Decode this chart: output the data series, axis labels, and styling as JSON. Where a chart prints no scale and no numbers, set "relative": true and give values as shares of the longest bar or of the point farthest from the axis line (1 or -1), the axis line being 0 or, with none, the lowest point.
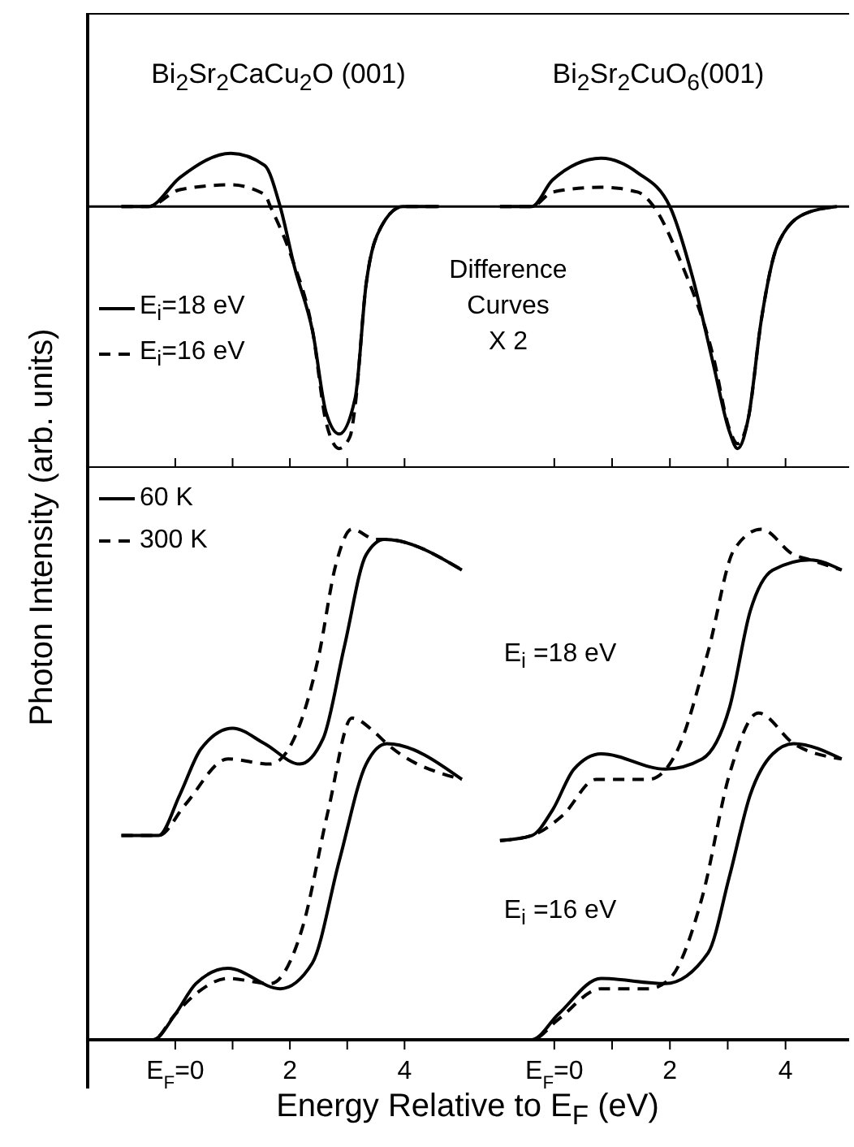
{
  "chart_data": [
    {
      "type": "line",
      "title": "Bi$_{2}$Sr$_{2}$CaCu$_{2}$O (001)",
      "relative": true,
      "xlim": [
        -1.5,
        5.1
      ],
      "xticks": [
        {
          "value": 0,
          "label": null
        },
        {
          "value": 1,
          "label": null
        },
        {
          "value": 2,
          "label": null
        },
        {
          "value": 3,
          "label": null
        },
        {
          "value": 4,
          "label": null
        }
      ],
      "tick_labels": false,
      "ref_lines": [
        {
          "axis": "y",
          "value": 0
        }
      ],
      "legend": "left",
      "annotations": [
        "Difference\nCurves\nX 2"
      ],
      "series": [
        {
          "name": "E$_{i}$=18 eV",
          "color": "#000000",
          "line_style": "solid",
          "x": [
            -0.94,
            -0.47,
            0.08,
            0.97,
            1.56,
            1.83,
            2.08,
            2.4,
            2.63,
            2.86,
            3.14,
            3.33,
            3.6,
            3.97,
            4.6
          ],
          "values": [
            0,
            0,
            0.12,
            0.22,
            0.17,
            0,
            -0.25,
            -0.52,
            -0.85,
            -0.94,
            -0.79,
            -0.32,
            -0.08,
            0,
            0
          ]
        },
        {
          "name": "E$_{i}$=16 eV",
          "color": "#000000",
          "line_style": "dashed",
          "x": [
            -0.94,
            -0.47,
            0.08,
            0.97,
            1.56,
            1.66,
            2.03,
            2.4,
            2.63,
            2.86,
            3.05,
            3.14,
            3.33,
            3.6,
            3.97,
            4.6
          ],
          "values": [
            0,
            0,
            0.07,
            0.09,
            0.05,
            0,
            -0.21,
            -0.52,
            -0.89,
            -1,
            -0.95,
            -0.82,
            -0.32,
            -0.08,
            0,
            0
          ]
        }
      ]
    },
    {
      "type": "line",
      "title": "Bi$_{2}$Sr$_{2}$CuO$_{6}$(001)",
      "relative": true,
      "xlim": [
        -1.5,
        5.1
      ],
      "xticks": [
        {
          "value": 0,
          "label": null
        },
        {
          "value": 1,
          "label": null
        },
        {
          "value": 2,
          "label": null
        },
        {
          "value": 3,
          "label": null
        },
        {
          "value": 4,
          "label": null
        }
      ],
      "tick_labels": false,
      "ref_lines": [
        {
          "axis": "y",
          "value": 0
        }
      ],
      "series": [
        {
          "color": "#000000",
          "line_style": "solid",
          "x": [
            -0.94,
            -0.39,
            -0.03,
            0.81,
            1.44,
            2.0,
            2.39,
            2.75,
            3.03,
            3.17,
            3.36,
            3.58,
            3.86,
            4.33,
            4.89
          ],
          "values": [
            0,
            0,
            0.11,
            0.2,
            0.14,
            0,
            -0.29,
            -0.65,
            -0.93,
            -1,
            -0.87,
            -0.47,
            -0.16,
            -0.03,
            0
          ]
        },
        {
          "color": "#000000",
          "line_style": "dashed",
          "x": [
            -0.94,
            -0.39,
            -0.03,
            0.81,
            1.44,
            1.72,
            2.19,
            2.75,
            3.03,
            3.17,
            3.36,
            3.58,
            3.86,
            4.33,
            4.89
          ],
          "values": [
            0,
            0,
            0.06,
            0.08,
            0.06,
            0,
            -0.23,
            -0.62,
            -0.92,
            -0.98,
            -0.87,
            -0.47,
            -0.16,
            -0.03,
            0
          ]
        }
      ]
    },
    {
      "type": "line",
      "xlabel": "Energy Relative to E$_{F}$ (eV)",
      "ylabel": "Photon Intensity (arb. units)",
      "relative": true,
      "xlim": [
        -1.5,
        5.1
      ],
      "xticks": [
        {
          "value": 0,
          "label": "E$_{F}$=0"
        },
        {
          "value": 1,
          "label": null
        },
        {
          "value": 2,
          "label": "2"
        },
        {
          "value": 3,
          "label": null
        },
        {
          "value": 4,
          "label": "4"
        }
      ],
      "tick_labels": "x",
      "legend": "top left",
      "series": [
        {
          "name": "60 K",
          "color": "#000000",
          "line_style": "solid",
          "x": [
            -0.94,
            -0.29,
            0.08,
            0.45,
            1.0,
            1.56,
            2.17,
            2.58,
            2.95,
            3.33,
            3.65,
            5.0
          ],
          "values": [
            0.4,
            0.4,
            0.48,
            0.57,
            0.61,
            0.58,
            0.54,
            0.59,
            0.77,
            0.95,
            0.98,
            0.92
          ]
        },
        {
          "name": "300 K",
          "color": "#000000",
          "line_style": "dashed",
          "x": [
            -0.94,
            -0.29,
            0.17,
            0.92,
            1.66,
            2.03,
            2.5,
            2.8,
            3.08,
            3.5,
            3.65,
            5.0
          ],
          "values": [
            0.4,
            0.4,
            0.46,
            0.55,
            0.54,
            0.58,
            0.75,
            0.93,
            1.0,
            0.98,
            0.98,
            0.92
          ]
        },
        {
          "color": "#000000",
          "line_style": "solid",
          "x": [
            -0.94,
            -0.39,
            0.0,
            0.36,
            0.92,
            1.83,
            2.39,
            2.86,
            3.33,
            3.69,
            5.0
          ],
          "values": [
            0,
            0,
            0.05,
            0.11,
            0.14,
            0.1,
            0.15,
            0.35,
            0.54,
            0.58,
            0.51
          ]
        },
        {
          "color": "#000000",
          "line_style": "dashed",
          "x": [
            -0.94,
            -0.39,
            0.0,
            0.36,
            0.92,
            1.66,
            2.22,
            2.67,
            3.08,
            3.5,
            3.69,
            5.0
          ],
          "values": [
            0,
            0,
            0.05,
            0.09,
            0.12,
            0.11,
            0.22,
            0.45,
            0.63,
            0.6,
            0.58,
            0.51
          ]
        }
      ]
    },
    {
      "type": "line",
      "relative": true,
      "xlim": [
        -1.5,
        5.1
      ],
      "xticks": [
        {
          "value": 0,
          "label": "E$_{F}$=0"
        },
        {
          "value": 1,
          "label": null
        },
        {
          "value": 2,
          "label": "2"
        },
        {
          "value": 3,
          "label": null
        },
        {
          "value": 4,
          "label": "4"
        }
      ],
      "tick_labels": "x",
      "annotations": [
        "E$_{i}$ =18 eV",
        "E$_{i}$ =16 eV"
      ],
      "series": [
        {
          "color": "#000000",
          "line_style": "solid",
          "x": [
            -0.94,
            -0.39,
            -0.03,
            0.34,
            0.81,
            1.92,
            2.56,
            3.03,
            3.39,
            3.78,
            4.42,
            4.97
          ],
          "values": [
            0.39,
            0.4,
            0.45,
            0.53,
            0.56,
            0.53,
            0.55,
            0.65,
            0.84,
            0.92,
            0.94,
            0.92
          ]
        },
        {
          "color": "#000000",
          "line_style": "dashed",
          "x": [
            -0.94,
            -0.39,
            0.15,
            0.72,
            1.64,
            2.1,
            2.66,
            3.11,
            3.58,
            4.14,
            4.42,
            4.97
          ],
          "values": [
            0.39,
            0.4,
            0.44,
            0.51,
            0.51,
            0.56,
            0.76,
            0.96,
            1,
            0.95,
            0.94,
            0.92
          ]
        },
        {
          "color": "#000000",
          "line_style": "solid",
          "x": [
            -0.94,
            -0.39,
            0.07,
            0.81,
            1.92,
            2.66,
            3.03,
            3.39,
            3.78,
            4.14,
            4.97
          ],
          "values": [
            0,
            0,
            0.05,
            0.12,
            0.11,
            0.17,
            0.32,
            0.48,
            0.56,
            0.58,
            0.55
          ]
        },
        {
          "color": "#000000",
          "line_style": "dashed",
          "x": [
            -0.94,
            -0.39,
            0.07,
            0.81,
            1.64,
            2.0,
            2.56,
            3.03,
            3.53,
            4.14,
            4.97
          ],
          "values": [
            0,
            0,
            0.04,
            0.1,
            0.1,
            0.12,
            0.28,
            0.52,
            0.64,
            0.58,
            0.55
          ]
        }
      ]
    }
  ]
}
